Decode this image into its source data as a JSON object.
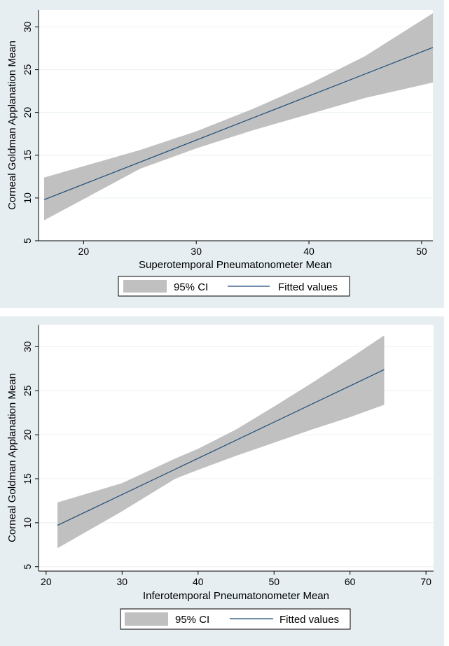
{
  "colors": {
    "panel_bg": "#e6eef2",
    "plot_bg": "#ffffff",
    "grid": "#eaf0f3",
    "ci_fill": "#c0c0c0",
    "fit_line": "#1f4e79",
    "axis": "#000000"
  },
  "chart_data": [
    {
      "type": "line",
      "title": "",
      "xlabel": "Superotemporal Pneumatonometer Mean",
      "ylabel": "Corneal Goldman Applanation Mean",
      "xlim": [
        16,
        51
      ],
      "ylim": [
        5,
        32
      ],
      "xticks": [
        20,
        30,
        40,
        50
      ],
      "yticks": [
        5,
        10,
        15,
        20,
        25,
        30
      ],
      "grid": true,
      "legend_position": "bottom",
      "legend": [
        "95% CI",
        "Fitted values"
      ],
      "series": [
        {
          "name": "Fitted values",
          "kind": "line",
          "x": [
            16.5,
            51
          ],
          "y": [
            9.8,
            27.6
          ]
        },
        {
          "name": "95% CI",
          "kind": "band",
          "x": [
            16.5,
            25,
            30,
            35,
            40,
            45,
            51
          ],
          "lower": [
            7.4,
            13.4,
            15.8,
            17.9,
            19.8,
            21.7,
            23.5
          ],
          "upper": [
            12.4,
            15.6,
            17.8,
            20.4,
            23.3,
            26.6,
            31.6
          ]
        }
      ]
    },
    {
      "type": "line",
      "title": "",
      "xlabel": "Inferotemporal  Pneumatonometer Mean",
      "ylabel": "Corneal Goldman Applanation Mean",
      "xlim": [
        19,
        71
      ],
      "ylim": [
        4.5,
        32.5
      ],
      "xticks": [
        20,
        30,
        40,
        50,
        60,
        70
      ],
      "yticks": [
        5,
        10,
        15,
        20,
        25,
        30
      ],
      "grid": true,
      "legend_position": "bottom",
      "legend": [
        "95% CI",
        "Fitted values"
      ],
      "series": [
        {
          "name": "Fitted values",
          "kind": "line",
          "x": [
            21.5,
            64.5
          ],
          "y": [
            9.7,
            27.4
          ]
        },
        {
          "name": "95% CI",
          "kind": "band",
          "x": [
            21.5,
            30,
            37,
            40,
            45,
            50,
            55,
            60,
            64.5
          ],
          "lower": [
            7.1,
            11.3,
            15.0,
            16.0,
            17.6,
            19.1,
            20.6,
            22.0,
            23.4
          ],
          "upper": [
            12.3,
            14.5,
            17.3,
            18.4,
            20.6,
            23.2,
            25.9,
            28.7,
            31.3
          ]
        }
      ]
    }
  ]
}
